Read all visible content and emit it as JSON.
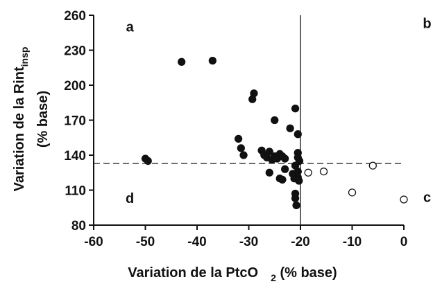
{
  "chart_data": {
    "type": "scatter",
    "xlabel": "Variation de la PtcO",
    "xlabel_subscript": "2",
    "xlabel_suffix": " (% base)",
    "ylabel_line1": "Variation de la Rint",
    "ylabel_subscript": "insp",
    "ylabel_line2": "(% base)",
    "xlim": [
      -60,
      0
    ],
    "ylim": [
      80,
      260
    ],
    "xticks": [
      -60,
      -50,
      -40,
      -30,
      -20,
      -10,
      0
    ],
    "yticks": [
      80,
      110,
      140,
      170,
      200,
      230,
      260
    ],
    "grid": false,
    "reference_lines": {
      "vertical_x": -20,
      "horizontal_y": 133,
      "horizontal_style": "dashed"
    },
    "quadrant_labels": [
      {
        "text": "a",
        "x": -53,
        "y": 246
      },
      {
        "text": "b",
        "x": 4.5,
        "y": 249
      },
      {
        "text": "d",
        "x": -53,
        "y": 99
      },
      {
        "text": "c",
        "x": 4.5,
        "y": 100
      }
    ],
    "series": [
      {
        "marker": "filled",
        "color": "#111111",
        "points": [
          [
            -43,
            220
          ],
          [
            -37,
            221
          ],
          [
            -29,
            193
          ],
          [
            -29.3,
            188
          ],
          [
            -50,
            137
          ],
          [
            -49.5,
            135
          ],
          [
            -32,
            154
          ],
          [
            -31.5,
            146
          ],
          [
            -31,
            140
          ],
          [
            -27.5,
            144
          ],
          [
            -27,
            140
          ],
          [
            -26.5,
            138
          ],
          [
            -26,
            143
          ],
          [
            -26,
            125
          ],
          [
            -25.5,
            136
          ],
          [
            -25,
            170
          ],
          [
            -25,
            139
          ],
          [
            -24.5,
            137
          ],
          [
            -24,
            120
          ],
          [
            -24,
            141
          ],
          [
            -23.5,
            119
          ],
          [
            -23.5,
            139
          ],
          [
            -23,
            128
          ],
          [
            -23,
            137
          ],
          [
            -22,
            163
          ],
          [
            -21.5,
            124
          ],
          [
            -21,
            180
          ],
          [
            -21,
            107
          ],
          [
            -21,
            103
          ],
          [
            -21,
            131
          ],
          [
            -20.8,
            97
          ],
          [
            -20.5,
            158
          ],
          [
            -20.5,
            142
          ],
          [
            -20.5,
            138
          ],
          [
            -20.5,
            126
          ],
          [
            -20.5,
            121
          ],
          [
            -20.3,
            118
          ],
          [
            -20.2,
            135
          ],
          [
            -21.2,
            120
          ]
        ]
      },
      {
        "marker": "open",
        "color": "#111111",
        "points": [
          [
            -18.5,
            125
          ],
          [
            -15.5,
            126
          ],
          [
            -10,
            108
          ],
          [
            -6,
            131
          ],
          [
            0,
            102
          ]
        ]
      }
    ]
  }
}
